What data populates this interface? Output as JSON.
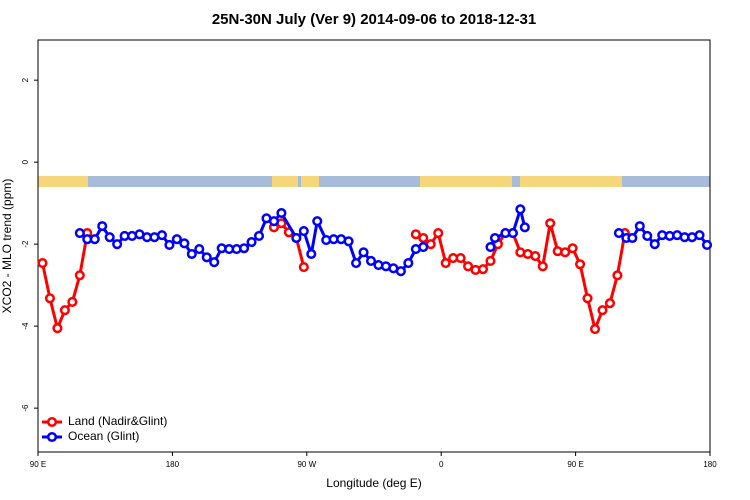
{
  "chart_data": {
    "type": "line",
    "title": "25N-30N July (Ver 9)   2014-09-06 to 2018-12-31",
    "x_label": "Longitude (deg E)",
    "y_label": "XCO2 - MLO trend (ppm)",
    "xlim": [
      90,
      540
    ],
    "ylim": [
      -7.07,
      2.98
    ],
    "xticks": [
      {
        "value": 90,
        "label": "90 E"
      },
      {
        "value": 180,
        "label": "180"
      },
      {
        "value": 270,
        "label": "90 W"
      },
      {
        "value": 360,
        "label": "0"
      },
      {
        "value": 450,
        "label": "90 E"
      },
      {
        "value": 540,
        "label": "180"
      }
    ],
    "yticks": [
      -6,
      -4,
      -2,
      0,
      2
    ],
    "grid": false,
    "legend": "bottom-left",
    "series": [
      {
        "name": "Land (Nadir&Glint)",
        "color": "#ff0000",
        "x": [
          93,
          98,
          103,
          108,
          113,
          118,
          123,
          null,
          248,
          253,
          258,
          263,
          268,
          null,
          343,
          348,
          353,
          358,
          363,
          368,
          373,
          378,
          383,
          388,
          393,
          398,
          403,
          408,
          413,
          418,
          423,
          428,
          433,
          438,
          443,
          448,
          453,
          458,
          463,
          468,
          473,
          478,
          483
        ],
        "values": [
          -2.46,
          -3.32,
          -4.05,
          -3.61,
          -3.41,
          -2.76,
          -1.73,
          null,
          -1.59,
          -1.49,
          -1.71,
          -1.85,
          -2.56,
          null,
          -1.76,
          -1.85,
          -2.0,
          -1.73,
          -2.46,
          -2.34,
          -2.34,
          -2.54,
          -2.63,
          -2.61,
          -2.41,
          -2.0,
          -1.73,
          -1.73,
          -2.2,
          -2.24,
          -2.29,
          -2.54,
          -1.49,
          -2.17,
          -2.2,
          -2.1,
          -2.49,
          -3.32,
          -4.07,
          -3.61,
          -3.44,
          -2.76,
          -1.73
        ]
      },
      {
        "name": "Ocean (Glint)",
        "color": "#0000ff",
        "x": [
          118,
          123,
          128,
          133,
          138,
          143,
          148,
          153,
          158,
          163,
          168,
          173,
          178,
          183,
          188,
          193,
          198,
          203,
          208,
          213,
          218,
          223,
          228,
          233,
          238,
          243,
          248,
          253,
          263,
          268,
          273,
          277,
          283,
          288,
          293,
          298,
          303,
          308,
          313,
          318,
          323,
          328,
          333,
          338,
          343,
          348,
          null,
          393,
          396,
          403,
          408,
          413,
          416,
          null,
          479,
          484,
          488,
          493,
          498,
          503,
          508,
          513,
          518,
          523,
          528,
          533,
          538
        ],
        "values": [
          -1.73,
          -1.88,
          -1.88,
          -1.56,
          -1.83,
          -2.0,
          -1.8,
          -1.8,
          -1.76,
          -1.83,
          -1.83,
          -1.78,
          -2.02,
          -1.88,
          -1.98,
          -2.24,
          -2.12,
          -2.32,
          -2.44,
          -2.1,
          -2.12,
          -2.12,
          -2.1,
          -1.95,
          -1.8,
          -1.37,
          -1.44,
          -1.24,
          -1.85,
          -1.68,
          -2.24,
          -1.44,
          -1.9,
          -1.88,
          -1.88,
          -1.93,
          -2.46,
          -2.2,
          -2.41,
          -2.51,
          -2.54,
          -2.59,
          -2.66,
          -2.46,
          -2.12,
          -2.07,
          null,
          -2.07,
          -1.85,
          -1.73,
          -1.73,
          -1.15,
          -1.59,
          null,
          -1.73,
          -1.85,
          -1.85,
          -1.56,
          -1.8,
          -2.0,
          -1.78,
          -1.8,
          -1.78,
          -1.83,
          -1.83,
          -1.78,
          -2.02
        ]
      }
    ]
  }
}
